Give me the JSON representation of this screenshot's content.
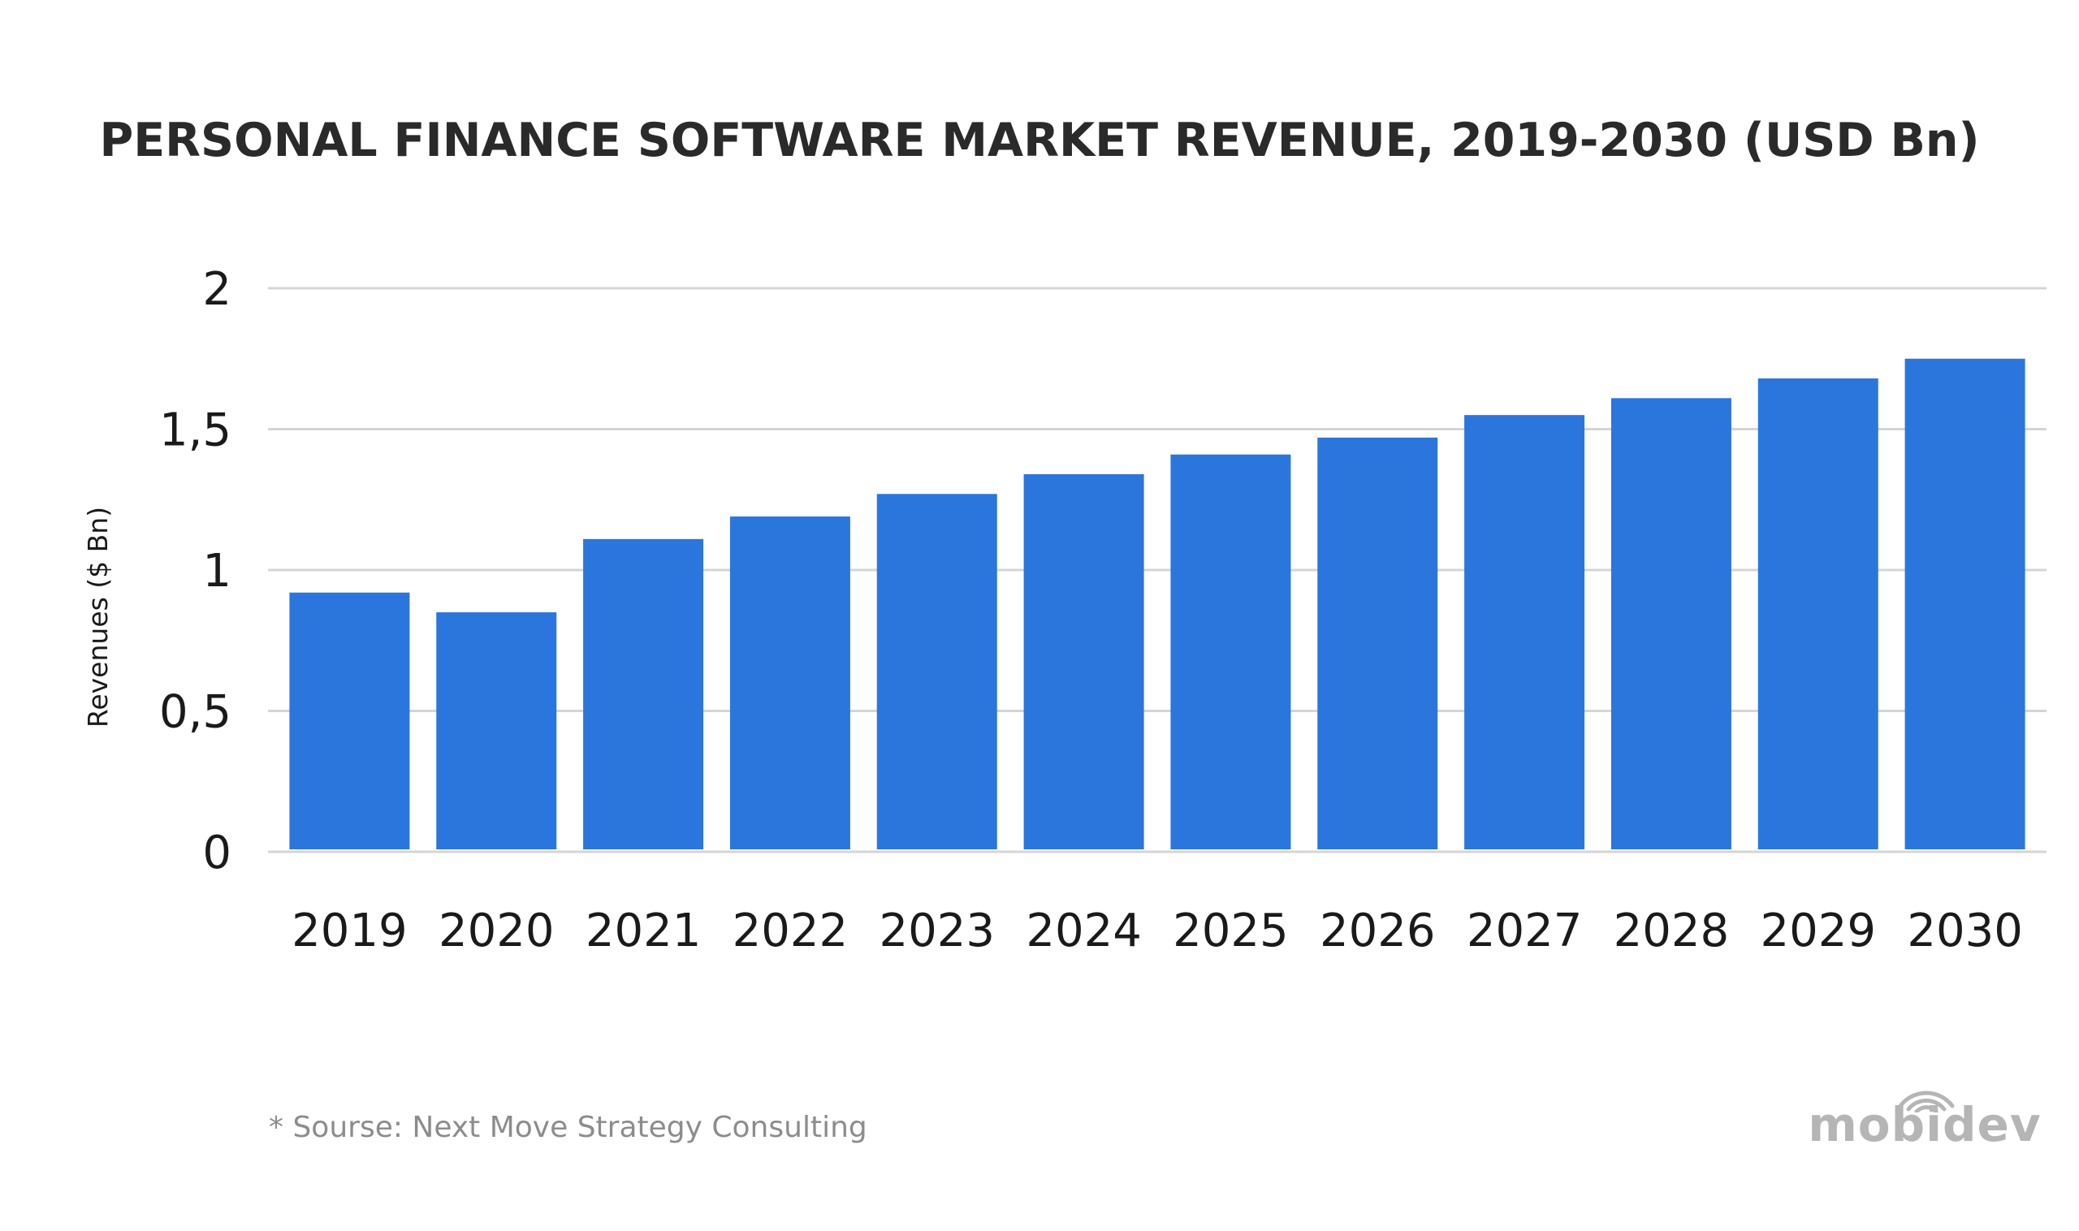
{
  "title": "PERSONAL FINANCE SOFTWARE MARKET REVENUE, 2019-2030 (USD Bn)",
  "source": "* Sourse: Next Move Strategy Consulting",
  "brand": {
    "name": "mobidev",
    "icon": "wifi-signal-icon",
    "color": "#b5b5b5"
  },
  "colors": {
    "bar": "#2b76dc",
    "grid": "#d4d4d4",
    "text": "#1a1a1a"
  },
  "chart_data": {
    "type": "bar",
    "title": "PERSONAL FINANCE SOFTWARE MARKET REVENUE, 2019-2030 (USD Bn)",
    "xlabel": "",
    "ylabel": "Revenues ($ Bn)",
    "categories": [
      "2019",
      "2020",
      "2021",
      "2022",
      "2023",
      "2024",
      "2025",
      "2026",
      "2027",
      "2028",
      "2029",
      "2030"
    ],
    "values": [
      0.92,
      0.85,
      1.11,
      1.19,
      1.27,
      1.34,
      1.41,
      1.47,
      1.55,
      1.61,
      1.68,
      1.75
    ],
    "ylim": [
      0,
      2
    ],
    "yticks": [
      "0",
      "0,5",
      "1",
      "1,5",
      "2"
    ],
    "ytick_values": [
      0,
      0.5,
      1,
      1.5,
      2
    ],
    "grid": true,
    "legend": "none"
  }
}
